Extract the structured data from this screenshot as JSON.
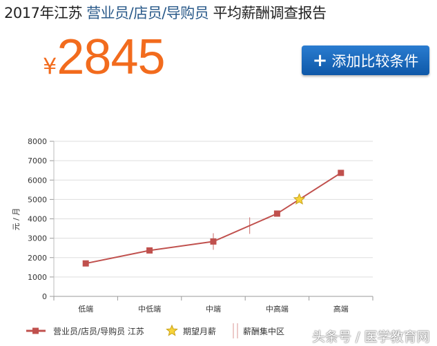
{
  "header": {
    "title_prefix": "2017年江苏",
    "title_job": "营业员/店员/导购员",
    "title_suffix": "平均薪酬调查报告"
  },
  "price": {
    "currency": "¥",
    "value": "2845",
    "color": "#f26b1d"
  },
  "add_button": {
    "icon": "plus-icon",
    "label": "添加比较条件",
    "color": "#1565b8"
  },
  "watermark": "头条号 / 医学教育网",
  "chart_data": {
    "type": "line",
    "categories": [
      "低端",
      "中低端",
      "中端",
      "中高端",
      "高端"
    ],
    "series": [
      {
        "name": "营业员/店员/导购员 江苏",
        "values": [
          1700,
          2370,
          2830,
          4270,
          6370
        ],
        "color": "#c0504d",
        "marker": "square"
      }
    ],
    "expected_salary": {
      "name": "期望月薪",
      "value": 5000,
      "marker": "star"
    },
    "salary_concentration": {
      "name": "薪酬集中区",
      "low": 2830,
      "high": 3650
    },
    "ylabel": "元 / 月",
    "ylim": [
      0,
      8000
    ],
    "yticks": [
      0,
      1000,
      2000,
      3000,
      4000,
      5000,
      6000,
      7000,
      8000
    ],
    "grid": true,
    "legend": "bottom"
  }
}
